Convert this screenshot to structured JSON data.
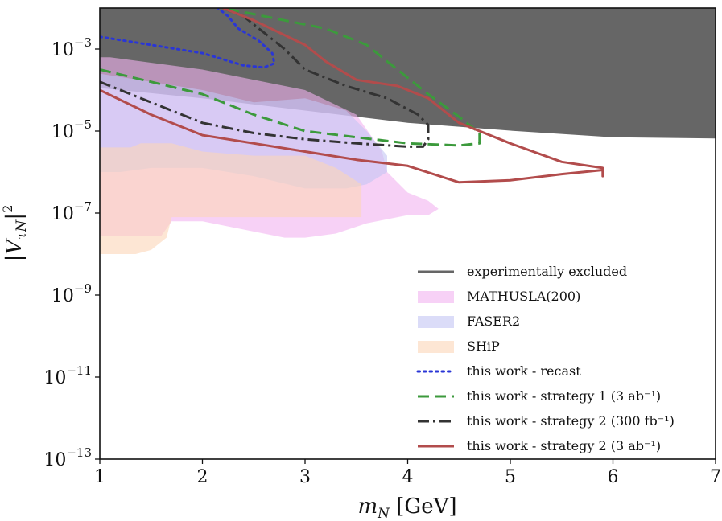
{
  "chart_data": {
    "type": "area",
    "xlabel": "m_N [GeV]",
    "ylabel": "|V_τN|²",
    "xlim": [
      1,
      7
    ],
    "ylim_log10": [
      -13,
      -2
    ],
    "x_ticks": [
      "1",
      "2",
      "3",
      "4",
      "5",
      "6",
      "7"
    ],
    "y_ticks": [
      {
        "log10": -13,
        "base": "10",
        "exp": "−13"
      },
      {
        "log10": -11,
        "base": "10",
        "exp": "−11"
      },
      {
        "log10": -9,
        "base": "10",
        "exp": "−9"
      },
      {
        "log10": -7,
        "base": "10",
        "exp": "−7"
      },
      {
        "log10": -5,
        "base": "10",
        "exp": "−5"
      },
      {
        "log10": -3,
        "base": "10",
        "exp": "−3"
      }
    ],
    "legend_placement": "lower-right",
    "series": [
      {
        "name": "experimentally excluded",
        "kind": "fill",
        "color": "#666666",
        "points": [
          [
            1,
            -2
          ],
          [
            7,
            -2
          ],
          [
            7,
            -5.18
          ],
          [
            6,
            -5.15
          ],
          [
            5,
            -4.99
          ],
          [
            4,
            -4.8
          ],
          [
            3,
            -4.5
          ],
          [
            2,
            -4.2
          ],
          [
            1,
            -3.95
          ]
        ]
      },
      {
        "name": "MATHUSLA(200)",
        "kind": "fill",
        "color": "#f2b3f0",
        "points": [
          [
            1,
            -3.2
          ],
          [
            1.1,
            -3.2
          ],
          [
            2,
            -3.5
          ],
          [
            3,
            -4.0
          ],
          [
            3.5,
            -4.6
          ],
          [
            3.75,
            -5.5
          ],
          [
            3.8,
            -6.0
          ],
          [
            4,
            -6.5
          ],
          [
            4.2,
            -6.7
          ],
          [
            4.3,
            -6.9
          ],
          [
            4.2,
            -7.05
          ],
          [
            4.0,
            -7.05
          ],
          [
            3.6,
            -7.25
          ],
          [
            3.3,
            -7.5
          ],
          [
            3,
            -7.6
          ],
          [
            2.8,
            -7.6
          ],
          [
            2.0,
            -7.2
          ],
          [
            1.7,
            -7.2
          ],
          [
            1.6,
            -7.55
          ],
          [
            1.45,
            -7.55
          ],
          [
            1.25,
            -7.55
          ],
          [
            1.0,
            -7.55
          ]
        ]
      },
      {
        "name": "FASER2",
        "kind": "fill",
        "color": "#c3c5f4",
        "points": [
          [
            1,
            -3.6
          ],
          [
            1.5,
            -3.8
          ],
          [
            2,
            -4.0
          ],
          [
            2.5,
            -4.3
          ],
          [
            3,
            -4.2
          ],
          [
            3.4,
            -4.5
          ],
          [
            3.6,
            -5.0
          ],
          [
            3.8,
            -5.6
          ],
          [
            3.8,
            -6.0
          ],
          [
            3.6,
            -6.3
          ],
          [
            3.4,
            -6.4
          ],
          [
            3.0,
            -6.4
          ],
          [
            2.5,
            -6.1
          ],
          [
            2.0,
            -5.9
          ],
          [
            1.5,
            -5.9
          ],
          [
            1.2,
            -6.0
          ],
          [
            1.0,
            -6.0
          ]
        ]
      },
      {
        "name": "SHiP",
        "kind": "fill",
        "color": "#fbd6b8",
        "points": [
          [
            1,
            -5.4
          ],
          [
            1.3,
            -5.4
          ],
          [
            1.4,
            -5.3
          ],
          [
            1.7,
            -5.3
          ],
          [
            2.0,
            -5.5
          ],
          [
            2.5,
            -5.6
          ],
          [
            3,
            -5.6
          ],
          [
            3.3,
            -5.9
          ],
          [
            3.55,
            -6.3
          ],
          [
            3.55,
            -7.1
          ],
          [
            3.0,
            -7.1
          ],
          [
            2.0,
            -7.1
          ],
          [
            1.7,
            -7.1
          ],
          [
            1.65,
            -7.6
          ],
          [
            1.5,
            -7.9
          ],
          [
            1.35,
            -8.0
          ],
          [
            1.1,
            -8.0
          ],
          [
            1.0,
            -8.0
          ]
        ]
      },
      {
        "name": "this work - recast",
        "kind": "line",
        "style": "dotted",
        "color": "#2a36d6",
        "points": [
          [
            1,
            -2.7
          ],
          [
            1.5,
            -2.9
          ],
          [
            2,
            -3.1
          ],
          [
            2.4,
            -3.4
          ],
          [
            2.6,
            -3.45
          ],
          [
            2.7,
            -3.35
          ],
          [
            2.68,
            -3.1
          ],
          [
            2.55,
            -2.8
          ],
          [
            2.35,
            -2.5
          ],
          [
            2.25,
            -2.2
          ],
          [
            2.15,
            -2.0
          ]
        ]
      },
      {
        "name": "this work - strategy 1 (3 ab⁻¹)",
        "kind": "line",
        "style": "dashed",
        "color": "#3c9a3c",
        "points": [
          [
            1,
            -3.5
          ],
          [
            1.5,
            -3.8
          ],
          [
            2,
            -4.1
          ],
          [
            2.5,
            -4.6
          ],
          [
            3,
            -5.0
          ],
          [
            3.5,
            -5.15
          ],
          [
            4,
            -5.3
          ],
          [
            4.5,
            -5.35
          ],
          [
            4.7,
            -5.3
          ],
          [
            4.7,
            -5.05
          ],
          [
            4.5,
            -4.65
          ],
          [
            4.2,
            -4.1
          ],
          [
            3.9,
            -3.5
          ],
          [
            3.6,
            -2.9
          ],
          [
            3.2,
            -2.5
          ],
          [
            2.8,
            -2.3
          ],
          [
            2.4,
            -2.1
          ],
          [
            2.2,
            -2.0
          ]
        ]
      },
      {
        "name": "this work - strategy 2 (300 fb⁻¹)",
        "kind": "line",
        "style": "dashdot",
        "color": "#333333",
        "points": [
          [
            1,
            -3.8
          ],
          [
            1.5,
            -4.3
          ],
          [
            2,
            -4.8
          ],
          [
            2.5,
            -5.05
          ],
          [
            3,
            -5.2
          ],
          [
            3.5,
            -5.3
          ],
          [
            4,
            -5.38
          ],
          [
            4.15,
            -5.38
          ],
          [
            4.2,
            -5.2
          ],
          [
            4.2,
            -4.85
          ],
          [
            4.1,
            -4.6
          ],
          [
            3.8,
            -4.2
          ],
          [
            3.4,
            -3.9
          ],
          [
            3.0,
            -3.5
          ],
          [
            2.8,
            -3.0
          ],
          [
            2.6,
            -2.6
          ],
          [
            2.4,
            -2.2
          ],
          [
            2.2,
            -2.0
          ]
        ]
      },
      {
        "name": "this work - strategy 2 (3 ab⁻¹)",
        "kind": "line",
        "style": "solid",
        "color": "#b24c4c",
        "points": [
          [
            1,
            -4.0
          ],
          [
            1.5,
            -4.6
          ],
          [
            2,
            -5.1
          ],
          [
            2.5,
            -5.3
          ],
          [
            3,
            -5.5
          ],
          [
            3.5,
            -5.7
          ],
          [
            4,
            -5.85
          ],
          [
            4.5,
            -6.25
          ],
          [
            5,
            -6.2
          ],
          [
            5.5,
            -6.05
          ],
          [
            5.9,
            -5.95
          ],
          [
            5.9,
            -6.1
          ],
          [
            5.9,
            -5.9
          ],
          [
            5.5,
            -5.75
          ],
          [
            5,
            -5.3
          ],
          [
            4.5,
            -4.8
          ],
          [
            4.2,
            -4.2
          ],
          [
            3.9,
            -3.9
          ],
          [
            3.5,
            -3.75
          ],
          [
            3.2,
            -3.3
          ],
          [
            3.0,
            -2.9
          ],
          [
            2.5,
            -2.3
          ],
          [
            2.2,
            -2.0
          ]
        ]
      }
    ]
  }
}
